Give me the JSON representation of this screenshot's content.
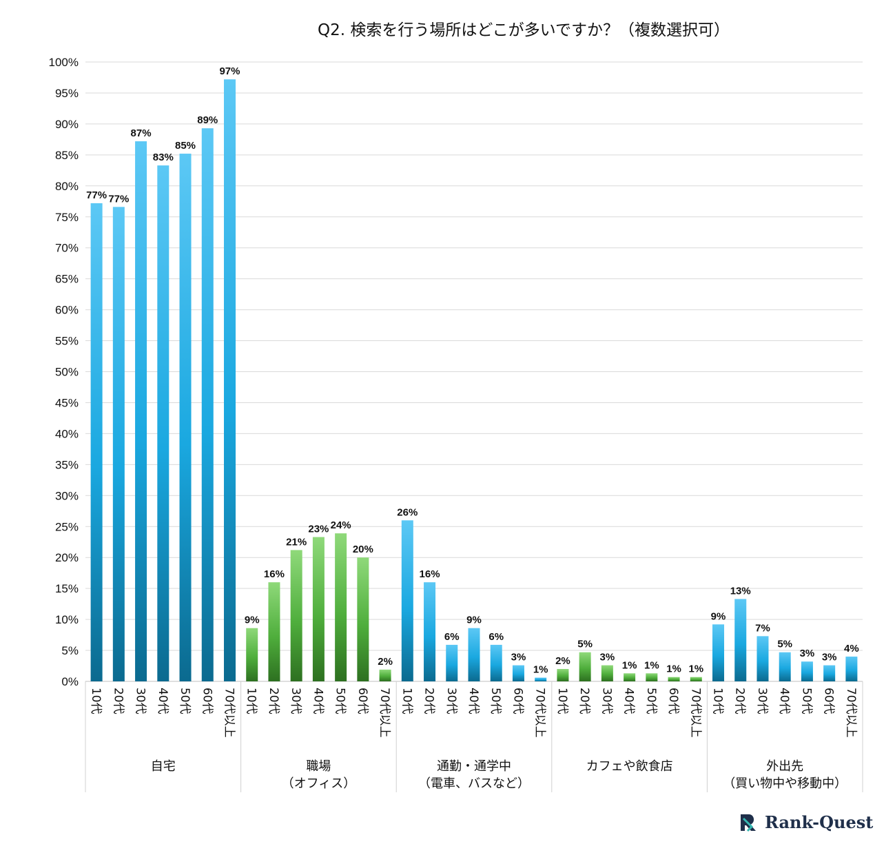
{
  "chart_data": {
    "type": "bar",
    "title": "Q2. 検索を行う場所はどこが多いですか？（複数選択可）",
    "ylim": [
      0,
      100
    ],
    "yticks": [
      "0%",
      "5%",
      "10%",
      "15%",
      "20%",
      "25%",
      "30%",
      "35%",
      "40%",
      "45%",
      "50%",
      "55%",
      "60%",
      "65%",
      "70%",
      "75%",
      "80%",
      "85%",
      "90%",
      "95%",
      "100%"
    ],
    "grid": true,
    "colors": {
      "blue": "#1aa8e0",
      "blue_light": "#5cc8f5",
      "blue_dark": "#0b6a8f",
      "green": "#4fae3c",
      "green_light": "#8fd97a",
      "green_dark": "#2d7020"
    },
    "groups": [
      {
        "label": [
          "自宅"
        ],
        "color": "blue",
        "categories": [
          "10代",
          "20代",
          "30代",
          "40代",
          "50代",
          "60代",
          "70代以上"
        ],
        "values": [
          77.2,
          76.6,
          87.2,
          83.3,
          85.2,
          89.3,
          97.2
        ],
        "data_labels": [
          "77%",
          "77%",
          "87%",
          "83%",
          "85%",
          "89%",
          "97%"
        ]
      },
      {
        "label": [
          "職場",
          "（オフィス）"
        ],
        "color": "green",
        "categories": [
          "10代",
          "20代",
          "30代",
          "40代",
          "50代",
          "60代",
          "70代以上"
        ],
        "values": [
          8.6,
          16.0,
          21.2,
          23.3,
          23.9,
          20.0,
          1.9
        ],
        "data_labels": [
          "9%",
          "16%",
          "21%",
          "23%",
          "24%",
          "20%",
          "2%"
        ]
      },
      {
        "label": [
          "通勤・通学中",
          "（電車、バスなど）"
        ],
        "color": "blue",
        "categories": [
          "10代",
          "20代",
          "30代",
          "40代",
          "50代",
          "60代",
          "70代以上"
        ],
        "values": [
          26.0,
          16.0,
          5.9,
          8.6,
          5.9,
          2.6,
          0.6
        ],
        "data_labels": [
          "26%",
          "16%",
          "6%",
          "9%",
          "6%",
          "3%",
          "1%"
        ]
      },
      {
        "label": [
          "カフェや飲食店"
        ],
        "color": "green",
        "categories": [
          "10代",
          "20代",
          "30代",
          "40代",
          "50代",
          "60代",
          "70代以上"
        ],
        "values": [
          2.0,
          4.7,
          2.6,
          1.3,
          1.3,
          0.7,
          0.7
        ],
        "data_labels": [
          "2%",
          "5%",
          "3%",
          "1%",
          "1%",
          "1%",
          "1%"
        ]
      },
      {
        "label": [
          "外出先",
          "（買い物中や移動中）"
        ],
        "color": "blue",
        "categories": [
          "10代",
          "20代",
          "30代",
          "40代",
          "50代",
          "60代",
          "70代以上"
        ],
        "values": [
          9.2,
          13.3,
          7.3,
          4.7,
          3.2,
          2.6,
          4.0
        ],
        "data_labels": [
          "9%",
          "13%",
          "7%",
          "5%",
          "3%",
          "3%",
          "4%"
        ]
      }
    ]
  },
  "logo": {
    "text": "Rank-Quest",
    "mark_icon": "rank-quest-logo-icon",
    "color": "#1f2f4a",
    "accent": "#35b8b2"
  }
}
